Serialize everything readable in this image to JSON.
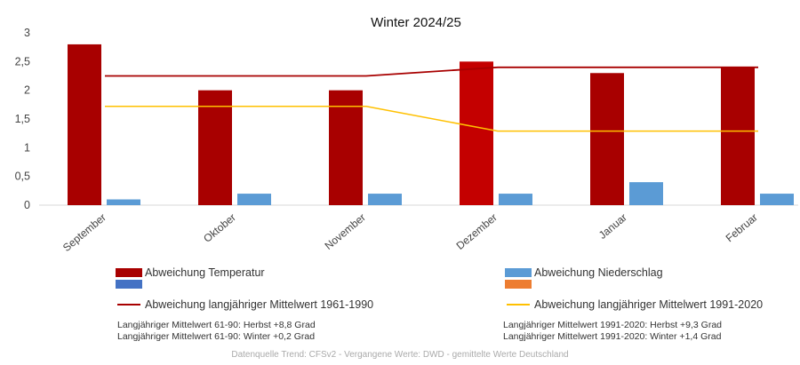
{
  "chart_data": {
    "type": "bar",
    "title": "Winter 2024/25",
    "categories": [
      "September",
      "Oktober",
      "November",
      "Dezember",
      "Januar",
      "Februar"
    ],
    "ylim": [
      0,
      3
    ],
    "yticks": [
      "0",
      "0,5",
      "1",
      "1,5",
      "2",
      "2,5",
      "3"
    ],
    "grid": false,
    "series": [
      {
        "name": "Abweichung Temperatur",
        "kind": "bar",
        "values": [
          2.8,
          2.0,
          2.0,
          2.5,
          2.3,
          2.4
        ],
        "colors": [
          "#a80000",
          "#a80000",
          "#a80000",
          "#c40000",
          "#a80000",
          "#a80000"
        ]
      },
      {
        "name": "Abweichung Niederschlag",
        "kind": "bar",
        "values": [
          0.1,
          0.2,
          0.2,
          0.2,
          0.4,
          0.2
        ],
        "color": "#5b9bd5"
      },
      {
        "name": "Abweichung langjähriger Mittelwert 1961-1990",
        "kind": "line",
        "values": [
          2.25,
          2.25,
          2.25,
          2.4,
          2.4,
          2.4
        ],
        "color": "#a80000"
      },
      {
        "name": "Abweichung langjähriger Mittelwert 1991-2020",
        "kind": "line",
        "values": [
          1.72,
          1.72,
          1.72,
          1.29,
          1.29,
          1.29
        ],
        "color": "#ffc000"
      }
    ]
  },
  "legend": {
    "temperature": "Abweichung Temperatur",
    "precipitation": "Abweichung Niederschlag",
    "mean_6190": "Abweichung langjähriger Mittelwert 1961-1990",
    "mean_9120": "Abweichung langjähriger Mittelwert 1991-2020",
    "colors": {
      "temp": "#a80000",
      "precip": "#5b9bd5",
      "extra_blue": "#4472c4",
      "extra_orange": "#ed7d31",
      "line_6190": "#a80000",
      "line_9120": "#ffc000"
    }
  },
  "notes": {
    "left_1": "Langjähriger Mittelwert 61-90: Herbst +8,8 Grad",
    "left_2": "Langjähriger Mittelwert 61-90: Winter +0,2 Grad",
    "right_1": "Langjähriger Mittelwert 1991-2020: Herbst +9,3 Grad",
    "right_2": "Langjähriger Mittelwert 1991-2020: Winter +1,4 Grad"
  },
  "source": "Datenquelle Trend: CFSv2 - Vergangene Werte: DWD - gemittelte Werte Deutschland"
}
